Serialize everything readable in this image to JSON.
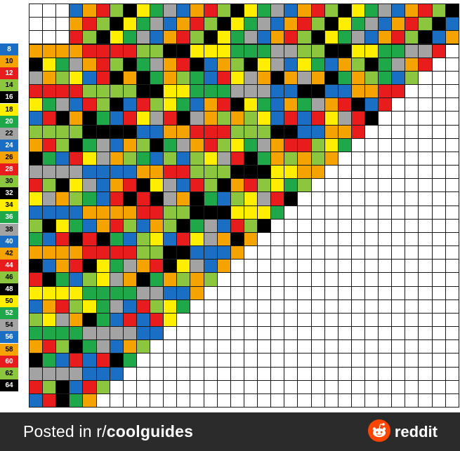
{
  "guide": {
    "row_labels": [
      "8",
      "10",
      "12",
      "14",
      "16",
      "18",
      "20",
      "22",
      "24",
      "26",
      "28",
      "30",
      "32",
      "34",
      "36",
      "38",
      "40",
      "42",
      "44",
      "46",
      "48",
      "50",
      "52",
      "54",
      "56",
      "58",
      "60",
      "62",
      "64"
    ],
    "palette": {
      "8": "#1a6fc4",
      "10": "#f5a300",
      "12": "#e81c1c",
      "14": "#8cc63f",
      "16": "#000000",
      "18": "#ffee00",
      "20": "#1fa84a",
      "22": "#a3a3a3",
      "24": "#1a6fc4",
      "26": "#f5a300",
      "28": "#e81c1c",
      "30": "#8cc63f",
      "32": "#000000",
      "34": "#ffee00",
      "36": "#1fa84a",
      "38": "#a3a3a3",
      "40": "#1a6fc4",
      "42": "#f5a300",
      "44": "#e81c1c",
      "46": "#8cc63f",
      "48": "#000000",
      "50": "#ffee00",
      "52": "#1fa84a",
      "54": "#a3a3a3",
      "56": "#1a6fc4",
      "58": "#f5a300",
      "60": "#e81c1c",
      "62": "#8cc63f",
      "64": "#000000"
    },
    "label_text_colors": {
      "8": "#ffffff",
      "10": "#000000",
      "12": "#ffffff",
      "14": "#000000",
      "16": "#ffffff",
      "18": "#000000",
      "20": "#ffffff",
      "22": "#000000",
      "24": "#ffffff",
      "26": "#000000",
      "28": "#ffffff",
      "30": "#000000",
      "32": "#ffffff",
      "34": "#000000",
      "36": "#ffffff",
      "38": "#000000",
      "40": "#ffffff",
      "42": "#000000",
      "44": "#ffffff",
      "46": "#000000",
      "48": "#ffffff",
      "50": "#000000",
      "52": "#ffffff",
      "54": "#000000",
      "56": "#ffffff",
      "58": "#000000",
      "60": "#ffffff",
      "62": "#000000",
      "64": "#ffffff"
    },
    "empty_color": "#ffffff",
    "grid_line_color": "#1a1a1a"
  },
  "footer": {
    "posted_prefix": "Posted in r/",
    "subreddit": "coolguides",
    "brand_word": "reddit",
    "brand_color": "#ff4500",
    "icon": "reddit-alien-logo-icon"
  }
}
